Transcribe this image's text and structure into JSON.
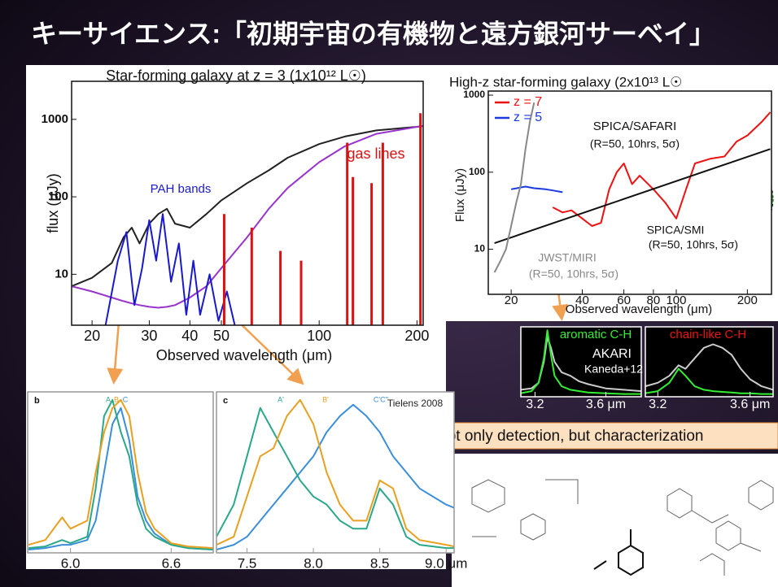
{
  "title": "キーサイエンス:「初期宇宙の有機物と遠方銀河サーベイ」",
  "banner": "Not only detection, but characterization",
  "chart_data": [
    {
      "type": "line",
      "title": "Star-forming galaxy at z = 3 (1x10¹² L☉)",
      "xlabel": "Observed wavelength (μm)",
      "ylabel": "flux (μJy)",
      "xlog": true,
      "ylog": true,
      "xlim": [
        17.3,
        209
      ],
      "ylim": [
        2.2,
        3100
      ],
      "xticks": [
        20,
        30,
        40,
        50,
        100,
        200
      ],
      "yticks": [
        10,
        100,
        1000
      ],
      "x": [
        17.3,
        20,
        23,
        25,
        26.5,
        28,
        30,
        32,
        34,
        36,
        40,
        45,
        50,
        60,
        70,
        80,
        100,
        120,
        150,
        200,
        209
      ],
      "series": [
        {
          "color": "#222222",
          "values": [
            7,
            9,
            14,
            30,
            40,
            25,
            45,
            60,
            70,
            45,
            40,
            60,
            90,
            150,
            220,
            320,
            480,
            600,
            720,
            800,
            820
          ]
        },
        {
          "color": "#9933cc",
          "values": [
            7,
            6,
            5,
            4.5,
            4.2,
            4,
            3.8,
            3.7,
            3.8,
            4,
            5,
            7,
            12,
            30,
            70,
            130,
            280,
            450,
            650,
            800,
            820
          ]
        },
        {
          "color": "#1a1acc",
          "x": [
            22,
            24,
            25.5,
            27,
            28.5,
            30,
            31.5,
            33,
            35,
            37,
            39,
            41,
            43,
            46,
            49,
            52,
            55
          ],
          "values": [
            2.2,
            15,
            35,
            4,
            12,
            50,
            15,
            60,
            8,
            25,
            3,
            15,
            3,
            10,
            2.5,
            6,
            2.2
          ]
        },
        {
          "color": "#dd1111",
          "style": "spike",
          "x": [
            51,
            62,
            76,
            88,
            122,
            127,
            145,
            157,
            205
          ],
          "values": [
            60,
            40,
            20,
            15,
            500,
            180,
            150,
            500,
            1200
          ]
        }
      ],
      "annotations": [
        {
          "text": "PAH bands",
          "color": "#1a1acc"
        },
        {
          "text": "gas lines",
          "color": "#dd1111"
        }
      ]
    },
    {
      "type": "line",
      "title": "High-z  star-forming galaxy (2x10¹³ L☉",
      "xlabel": "Observed wavelength (μm)",
      "ylabel": "Flux (μJy)",
      "xlog": true,
      "ylog": true,
      "xlim": [
        16,
        253
      ],
      "ylim": [
        2.6,
        1130
      ],
      "xticks": [
        20,
        40,
        60,
        80,
        100,
        200
      ],
      "yticks": [
        10,
        100,
        1000
      ],
      "series": [
        {
          "name": "z = 7",
          "color": "#ee1111",
          "x": [
            30,
            33,
            36,
            40,
            44,
            48,
            52,
            56,
            60,
            65,
            70,
            80,
            90,
            100,
            110,
            120,
            140,
            160,
            180,
            200,
            230,
            250
          ],
          "values": [
            35,
            30,
            32,
            25,
            20,
            22,
            60,
            100,
            130,
            70,
            90,
            60,
            40,
            25,
            60,
            130,
            150,
            160,
            250,
            300,
            450,
            600
          ]
        },
        {
          "name": "z = 5",
          "color": "#1a3ae0",
          "x": [
            20,
            23,
            25,
            28,
            30,
            33
          ],
          "values": [
            60,
            65,
            62,
            60,
            58,
            55
          ]
        },
        {
          "color": "#111111",
          "x": [
            17,
            250
          ],
          "values": [
            12,
            200
          ]
        },
        {
          "color": "#888888",
          "x": [
            17,
            18,
            19,
            20,
            21,
            22,
            23,
            24,
            25
          ],
          "values": [
            5,
            7,
            10,
            20,
            40,
            70,
            200,
            450,
            800
          ]
        }
      ],
      "annotations": [
        {
          "text": "SPICA/SAFARI",
          "color": "#111111"
        },
        {
          "text": "(R=50, 10hrs, 5σ)",
          "color": "#111111"
        },
        {
          "text": "SPICA/SMI",
          "color": "#111111"
        },
        {
          "text": "(R=50, 10hrs, 5σ)",
          "color": "#111111"
        },
        {
          "text": "JWST/MIRI",
          "color": "#888888"
        },
        {
          "text": "(R=50, 10hrs, 5σ)",
          "color": "#888888"
        }
      ]
    },
    {
      "type": "line",
      "xlim": [
        3.12,
        3.8
      ],
      "ylim": [
        0,
        1
      ],
      "xticks": [
        3.2,
        {
          "value": 3.6,
          "label": "3.6 μm"
        }
      ],
      "x": [
        3.12,
        3.18,
        3.22,
        3.25,
        3.27,
        3.29,
        3.31,
        3.35,
        3.4,
        3.45,
        3.5,
        3.6,
        3.7,
        3.8
      ],
      "series": [
        {
          "color": "#cccccc",
          "values": [
            0.1,
            0.12,
            0.2,
            0.5,
            0.85,
            0.7,
            0.5,
            0.35,
            0.3,
            0.22,
            0.18,
            0.12,
            0.1,
            0.08
          ]
        },
        {
          "color": "#33ee33",
          "values": [
            0.05,
            0.08,
            0.2,
            0.55,
            0.95,
            0.6,
            0.3,
            0.15,
            0.1,
            0.08,
            0.06,
            0.05,
            0.04,
            0.04
          ]
        }
      ],
      "annotations": [
        {
          "text": "aromatic C-H",
          "color": "#33ee33"
        },
        {
          "text": "AKARI",
          "color": "#ffffff"
        },
        {
          "text": "Kaneda+12",
          "color": "#ffffff"
        }
      ]
    },
    {
      "type": "line",
      "xlim": [
        3.146,
        3.7
      ],
      "ylim": [
        0,
        1
      ],
      "xticks": [
        3.2,
        {
          "value": 3.6,
          "label": "3.6 μm"
        }
      ],
      "x": [
        3.146,
        3.2,
        3.25,
        3.29,
        3.32,
        3.36,
        3.4,
        3.44,
        3.48,
        3.52,
        3.56,
        3.6,
        3.65,
        3.7
      ],
      "series": [
        {
          "color": "#cccccc",
          "values": [
            0.15,
            0.2,
            0.3,
            0.45,
            0.4,
            0.55,
            0.7,
            0.75,
            0.7,
            0.6,
            0.4,
            0.25,
            0.15,
            0.1
          ]
        },
        {
          "color": "#33ee33",
          "values": [
            0.05,
            0.08,
            0.2,
            0.4,
            0.3,
            0.15,
            0.1,
            0.08,
            0.07,
            0.06,
            0.05,
            0.05,
            0.04,
            0.04
          ]
        }
      ],
      "annotations": [
        {
          "text": "chain-like C-H",
          "color": "#ee1111"
        }
      ]
    },
    {
      "type": "line",
      "panel": "b",
      "xlim": [
        5.745,
        6.85
      ],
      "ylim": [
        0,
        1
      ],
      "xticks": [
        {
          "value": 6,
          "label": "6.0"
        },
        6.6
      ],
      "x": [
        5.75,
        5.85,
        5.95,
        6.0,
        6.1,
        6.15,
        6.2,
        6.25,
        6.3,
        6.35,
        6.4,
        6.45,
        6.5,
        6.6,
        6.7,
        6.85
      ],
      "series": [
        {
          "color": "#3a8fd8",
          "values": [
            0.02,
            0.03,
            0.05,
            0.05,
            0.08,
            0.2,
            0.5,
            0.8,
            0.9,
            0.7,
            0.35,
            0.2,
            0.12,
            0.05,
            0.03,
            0.02
          ]
        },
        {
          "color": "#2aa88a",
          "values": [
            0.03,
            0.04,
            0.08,
            0.06,
            0.1,
            0.4,
            0.85,
            0.95,
            0.75,
            0.6,
            0.3,
            0.15,
            0.1,
            0.05,
            0.03,
            0.02
          ]
        },
        {
          "color": "#e8a020",
          "values": [
            0.05,
            0.08,
            0.22,
            0.15,
            0.2,
            0.5,
            0.75,
            0.9,
            0.95,
            0.85,
            0.5,
            0.25,
            0.15,
            0.06,
            0.04,
            0.03
          ]
        }
      ],
      "annotations": [
        {
          "text": "A",
          "color": "#2aa88a"
        },
        {
          "text": "B",
          "color": "#e8a020"
        },
        {
          "text": "C",
          "color": "#3a8fd8"
        }
      ]
    },
    {
      "type": "line",
      "panel": "c",
      "xlim": [
        7.27,
        9.06
      ],
      "ylim": [
        0,
        1
      ],
      "xticks": [
        7.5,
        {
          "value": 8,
          "label": "8.0"
        },
        8.5,
        {
          "value": 9,
          "label": "9.0 μm"
        }
      ],
      "x": [
        7.27,
        7.4,
        7.5,
        7.6,
        7.7,
        7.8,
        7.9,
        8.0,
        8.1,
        8.2,
        8.3,
        8.4,
        8.5,
        8.6,
        8.7,
        8.8,
        9.0,
        9.06
      ],
      "series": [
        {
          "color": "#3a8fd8",
          "values": [
            0.02,
            0.05,
            0.1,
            0.2,
            0.3,
            0.4,
            0.5,
            0.6,
            0.75,
            0.85,
            0.92,
            0.85,
            0.75,
            0.6,
            0.5,
            0.4,
            0.3,
            0.28
          ]
        },
        {
          "color": "#2aa88a",
          "values": [
            0.1,
            0.3,
            0.6,
            0.9,
            0.75,
            0.6,
            0.45,
            0.35,
            0.3,
            0.2,
            0.15,
            0.15,
            0.4,
            0.3,
            0.1,
            0.05,
            0.03,
            0.03
          ]
        },
        {
          "color": "#e8a020",
          "values": [
            0.05,
            0.1,
            0.35,
            0.6,
            0.65,
            0.85,
            0.95,
            0.8,
            0.5,
            0.3,
            0.2,
            0.2,
            0.45,
            0.4,
            0.15,
            0.08,
            0.05,
            0.04
          ]
        }
      ],
      "annotations": [
        {
          "text": "A'",
          "color": "#2aa88a"
        },
        {
          "text": "B'",
          "color": "#e8a020"
        },
        {
          "text": "C'C''",
          "color": "#3a8fd8"
        },
        {
          "text": "Tielens 2008",
          "color": "#222222"
        }
      ]
    }
  ]
}
